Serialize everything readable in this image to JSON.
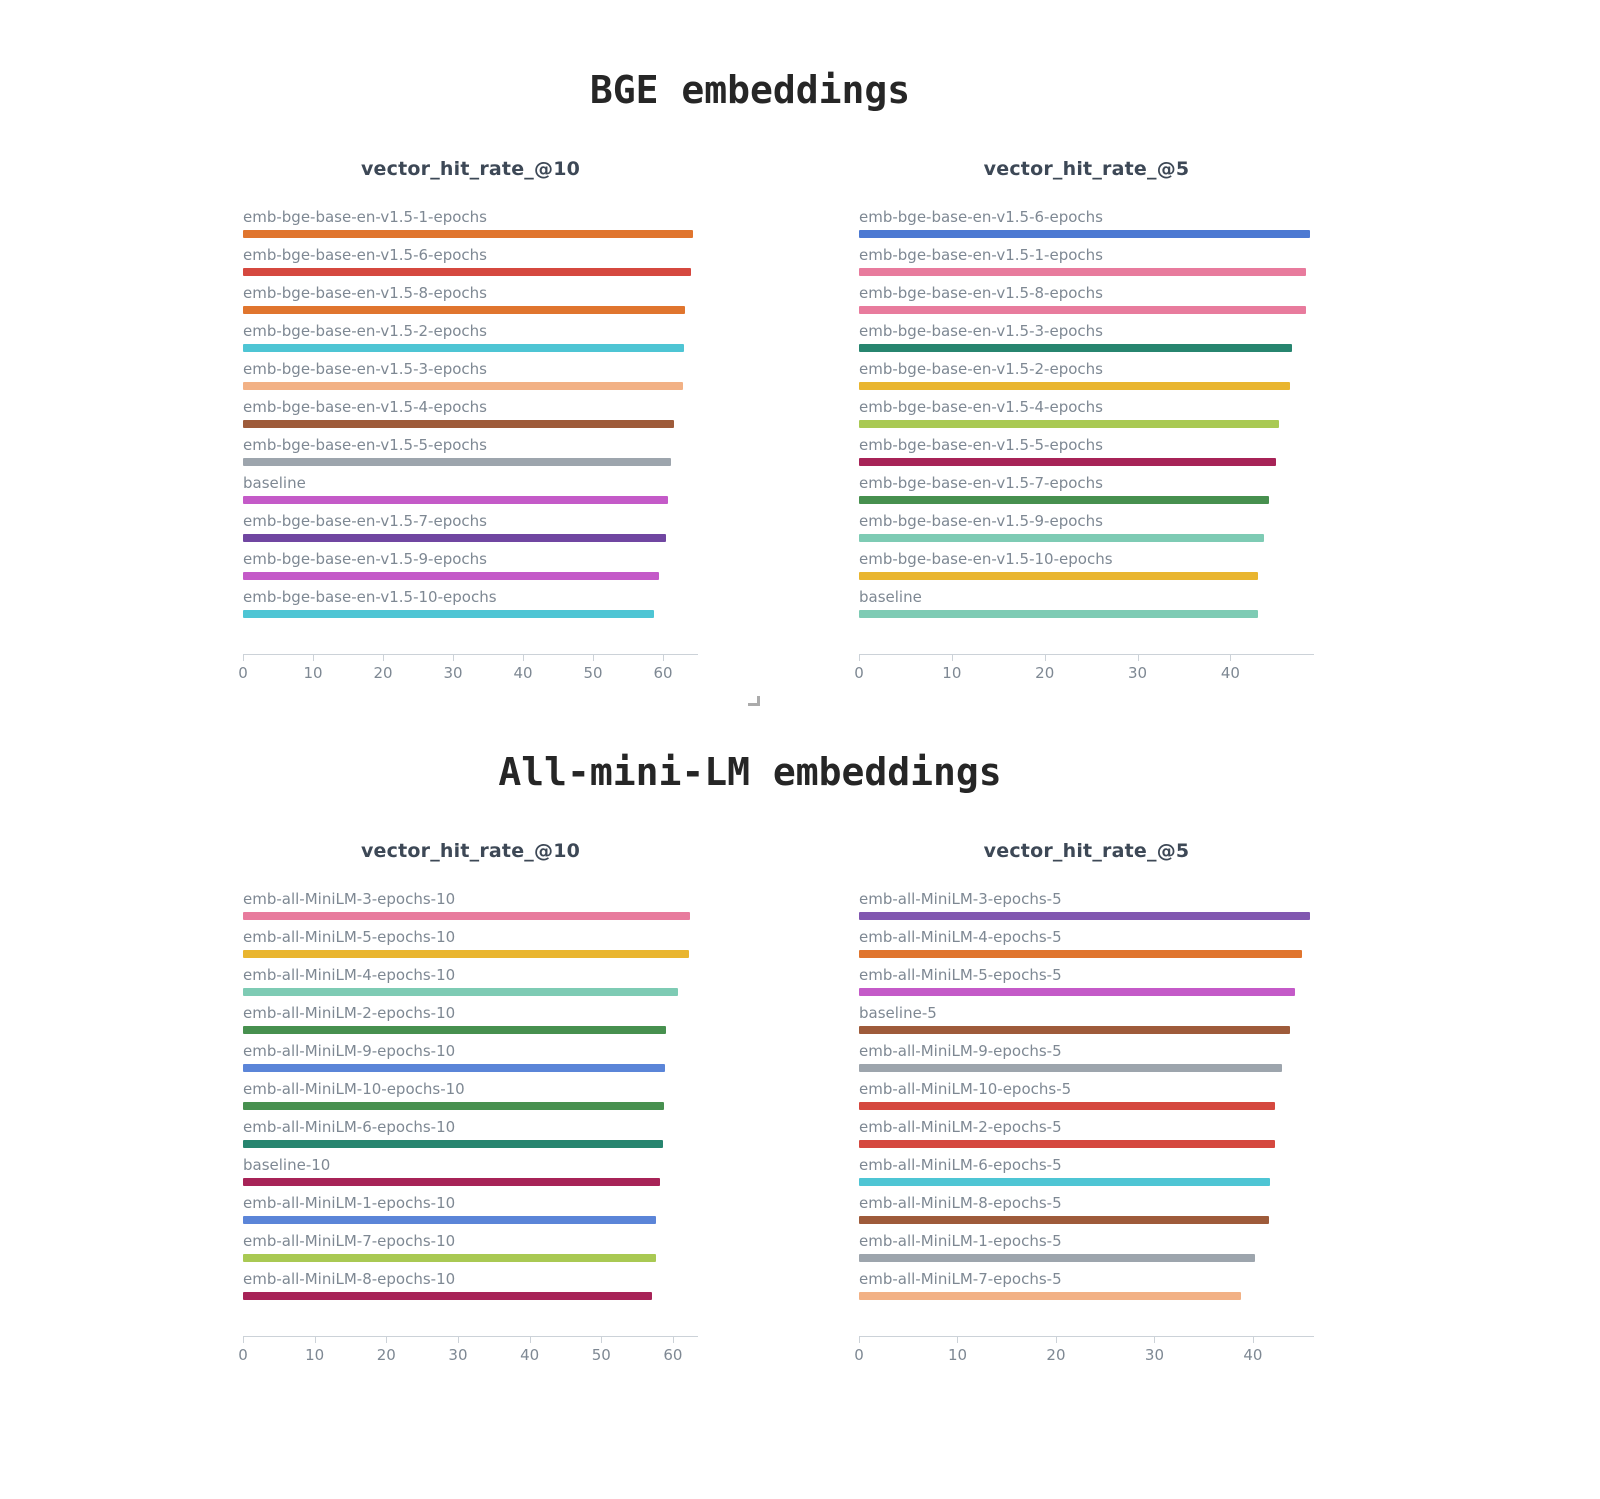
{
  "sections": [
    {
      "title": "BGE embeddings"
    },
    {
      "title": "All-mini-LM embeddings"
    }
  ],
  "chart_data": [
    {
      "type": "bar",
      "orientation": "horizontal",
      "section": "BGE embeddings",
      "title": "vector_hit_rate_@10",
      "xlim": [
        0,
        65
      ],
      "xticks": [
        0,
        10,
        20,
        30,
        40,
        50,
        60
      ],
      "grid": false,
      "legend": "none",
      "bars": [
        {
          "label": "emb-bge-base-en-v1.5-1-epochs",
          "value": 64.3,
          "color": "#e0752e"
        },
        {
          "label": "emb-bge-base-en-v1.5-6-epochs",
          "value": 64.0,
          "color": "#d5483f"
        },
        {
          "label": "emb-bge-base-en-v1.5-8-epochs",
          "value": 63.2,
          "color": "#e0752e"
        },
        {
          "label": "emb-bge-base-en-v1.5-2-epochs",
          "value": 63.0,
          "color": "#4ec5d4"
        },
        {
          "label": "emb-bge-base-en-v1.5-3-epochs",
          "value": 62.8,
          "color": "#f2b185"
        },
        {
          "label": "emb-bge-base-en-v1.5-4-epochs",
          "value": 61.5,
          "color": "#9e5b3a"
        },
        {
          "label": "emb-bge-base-en-v1.5-5-epochs",
          "value": 61.2,
          "color": "#9da5ad"
        },
        {
          "label": "baseline",
          "value": 60.7,
          "color": "#c45ac8"
        },
        {
          "label": "emb-bge-base-en-v1.5-7-epochs",
          "value": 60.4,
          "color": "#7046a1"
        },
        {
          "label": "emb-bge-base-en-v1.5-9-epochs",
          "value": 59.4,
          "color": "#c45ac8"
        },
        {
          "label": "emb-bge-base-en-v1.5-10-epochs",
          "value": 58.7,
          "color": "#4ec5d4"
        }
      ]
    },
    {
      "type": "bar",
      "orientation": "horizontal",
      "section": "BGE embeddings",
      "title": "vector_hit_rate_@5",
      "xlim": [
        0,
        49
      ],
      "xticks": [
        0,
        10,
        20,
        30,
        40
      ],
      "grid": false,
      "legend": "none",
      "bars": [
        {
          "label": "emb-bge-base-en-v1.5-6-epochs",
          "value": 48.6,
          "color": "#4c79d2"
        },
        {
          "label": "emb-bge-base-en-v1.5-1-epochs",
          "value": 48.1,
          "color": "#e87b9d"
        },
        {
          "label": "emb-bge-base-en-v1.5-8-epochs",
          "value": 48.1,
          "color": "#e87b9d"
        },
        {
          "label": "emb-bge-base-en-v1.5-3-epochs",
          "value": 46.6,
          "color": "#27856f"
        },
        {
          "label": "emb-bge-base-en-v1.5-2-epochs",
          "value": 46.4,
          "color": "#e9b52f"
        },
        {
          "label": "emb-bge-base-en-v1.5-4-epochs",
          "value": 45.2,
          "color": "#a9c953"
        },
        {
          "label": "emb-bge-base-en-v1.5-5-epochs",
          "value": 44.9,
          "color": "#a72357"
        },
        {
          "label": "emb-bge-base-en-v1.5-7-epochs",
          "value": 44.1,
          "color": "#47904f"
        },
        {
          "label": "emb-bge-base-en-v1.5-9-epochs",
          "value": 43.6,
          "color": "#7ecbb4"
        },
        {
          "label": "emb-bge-base-en-v1.5-10-epochs",
          "value": 43.0,
          "color": "#e9b52f"
        },
        {
          "label": "baseline",
          "value": 43.0,
          "color": "#7ecbb4"
        }
      ]
    },
    {
      "type": "bar",
      "orientation": "horizontal",
      "section": "All-mini-LM embeddings",
      "title": "vector_hit_rate_@10",
      "xlim": [
        0,
        63.5
      ],
      "xticks": [
        0,
        10,
        20,
        30,
        40,
        50,
        60
      ],
      "grid": false,
      "legend": "none",
      "bars": [
        {
          "label": "emb-all-MiniLM-3-epochs-10",
          "value": 62.4,
          "color": "#e87b9d"
        },
        {
          "label": "emb-all-MiniLM-5-epochs-10",
          "value": 62.3,
          "color": "#e9b52f"
        },
        {
          "label": "emb-all-MiniLM-4-epochs-10",
          "value": 60.7,
          "color": "#7ecbb4"
        },
        {
          "label": "emb-all-MiniLM-2-epochs-10",
          "value": 59.0,
          "color": "#47904f"
        },
        {
          "label": "emb-all-MiniLM-9-epochs-10",
          "value": 58.9,
          "color": "#5b85d8"
        },
        {
          "label": "emb-all-MiniLM-10-epochs-10",
          "value": 58.8,
          "color": "#47904f"
        },
        {
          "label": "emb-all-MiniLM-6-epochs-10",
          "value": 58.6,
          "color": "#27856f"
        },
        {
          "label": "baseline-10",
          "value": 58.2,
          "color": "#a72357"
        },
        {
          "label": "emb-all-MiniLM-1-epochs-10",
          "value": 57.7,
          "color": "#5b85d8"
        },
        {
          "label": "emb-all-MiniLM-7-epochs-10",
          "value": 57.6,
          "color": "#a9c953"
        },
        {
          "label": "emb-all-MiniLM-8-epochs-10",
          "value": 57.1,
          "color": "#a72357"
        }
      ]
    },
    {
      "type": "bar",
      "orientation": "horizontal",
      "section": "All-mini-LM embeddings",
      "title": "vector_hit_rate_@5",
      "xlim": [
        0,
        46.2
      ],
      "xticks": [
        0,
        10,
        20,
        30,
        40
      ],
      "grid": false,
      "legend": "none",
      "bars": [
        {
          "label": "emb-all-MiniLM-3-epochs-5",
          "value": 45.8,
          "color": "#8157b0"
        },
        {
          "label": "emb-all-MiniLM-4-epochs-5",
          "value": 45.0,
          "color": "#e0752e"
        },
        {
          "label": "emb-all-MiniLM-5-epochs-5",
          "value": 44.3,
          "color": "#c45ac8"
        },
        {
          "label": "baseline-5",
          "value": 43.8,
          "color": "#9e5b3a"
        },
        {
          "label": "emb-all-MiniLM-9-epochs-5",
          "value": 42.9,
          "color": "#9da5ad"
        },
        {
          "label": "emb-all-MiniLM-10-epochs-5",
          "value": 42.2,
          "color": "#d5483f"
        },
        {
          "label": "emb-all-MiniLM-2-epochs-5",
          "value": 42.2,
          "color": "#d5483f"
        },
        {
          "label": "emb-all-MiniLM-6-epochs-5",
          "value": 41.7,
          "color": "#4ec5d4"
        },
        {
          "label": "emb-all-MiniLM-8-epochs-5",
          "value": 41.6,
          "color": "#9e5b3a"
        },
        {
          "label": "emb-all-MiniLM-1-epochs-5",
          "value": 40.2,
          "color": "#9da5ad"
        },
        {
          "label": "emb-all-MiniLM-7-epochs-5",
          "value": 38.8,
          "color": "#f2b185"
        }
      ]
    }
  ]
}
